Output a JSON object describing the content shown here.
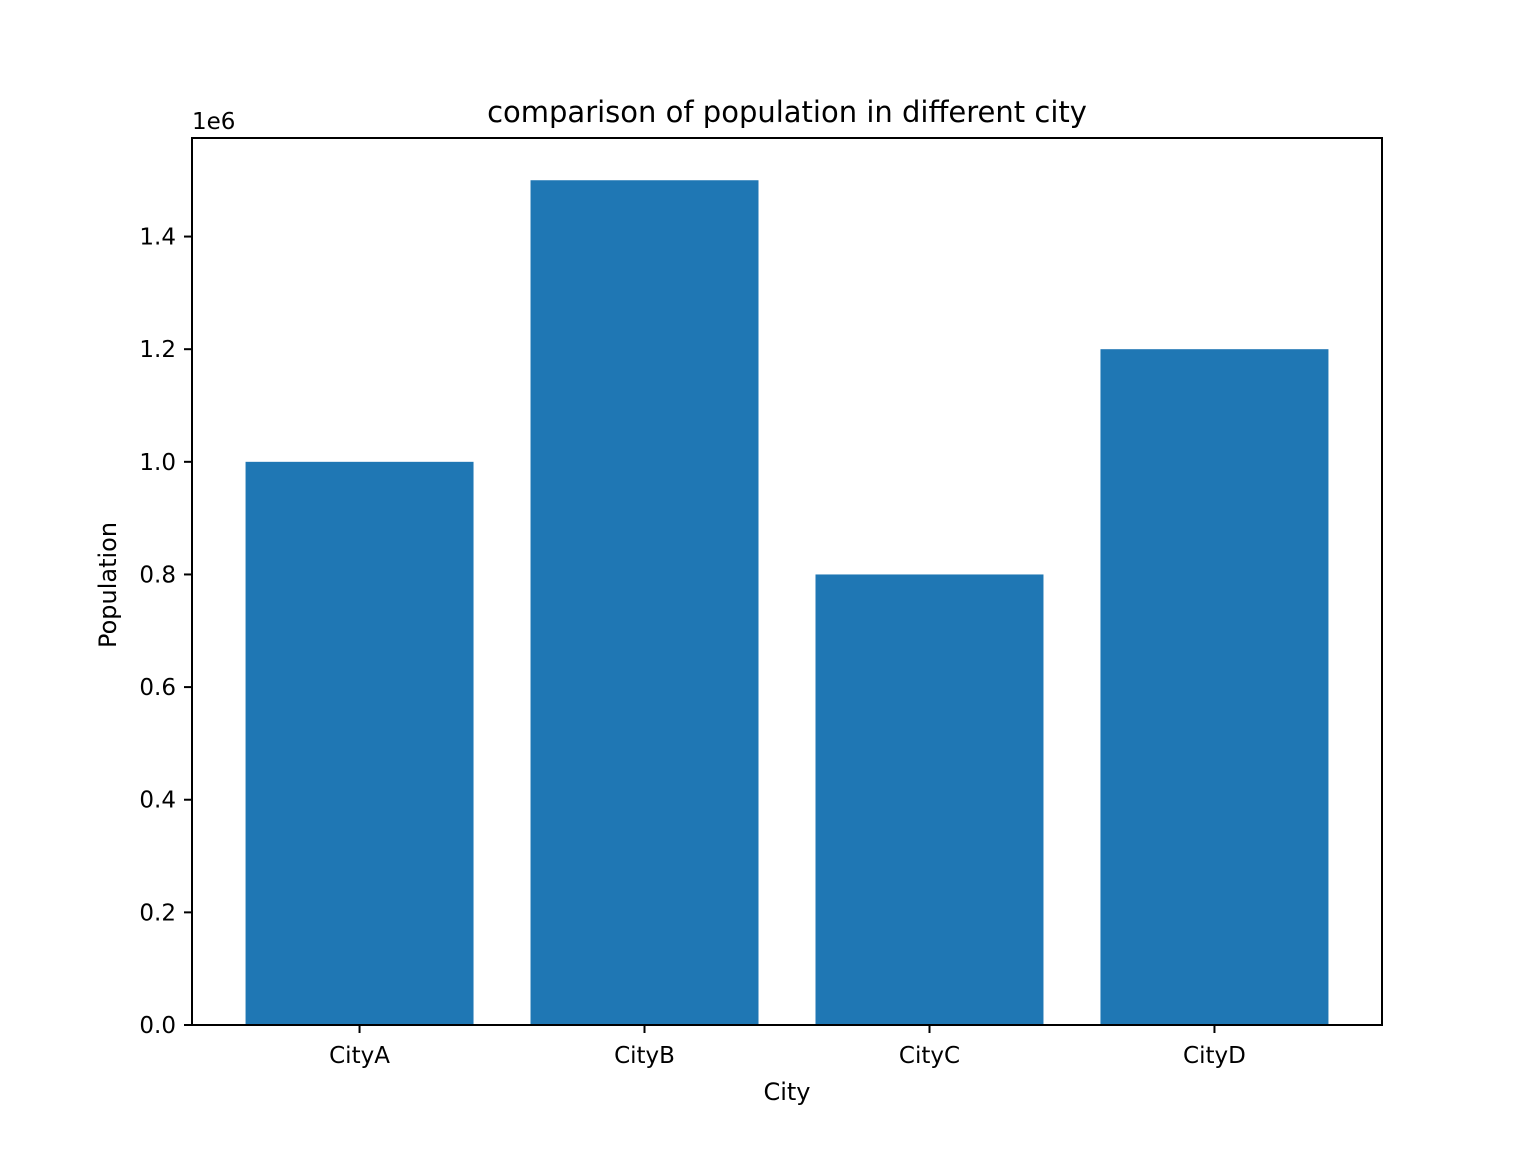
{
  "chart_data": {
    "type": "bar",
    "title": "comparison of population in different city",
    "xlabel": "City",
    "ylabel": "Population",
    "y_scale_label": "1e6",
    "scale": 1000000,
    "categories": [
      "CityA",
      "CityB",
      "CityC",
      "CityD"
    ],
    "values": [
      1000000,
      1500000,
      800000,
      1200000
    ],
    "ylim": [
      0,
      1575000
    ],
    "yticks": [
      0,
      200000,
      400000,
      600000,
      800000,
      1000000,
      1200000,
      1400000
    ],
    "ytick_labels": [
      "0.0",
      "0.2",
      "0.4",
      "0.6",
      "0.8",
      "1.0",
      "1.2",
      "1.4"
    ],
    "bar_color": "#1f77b4",
    "grid": false,
    "legend": "none"
  }
}
